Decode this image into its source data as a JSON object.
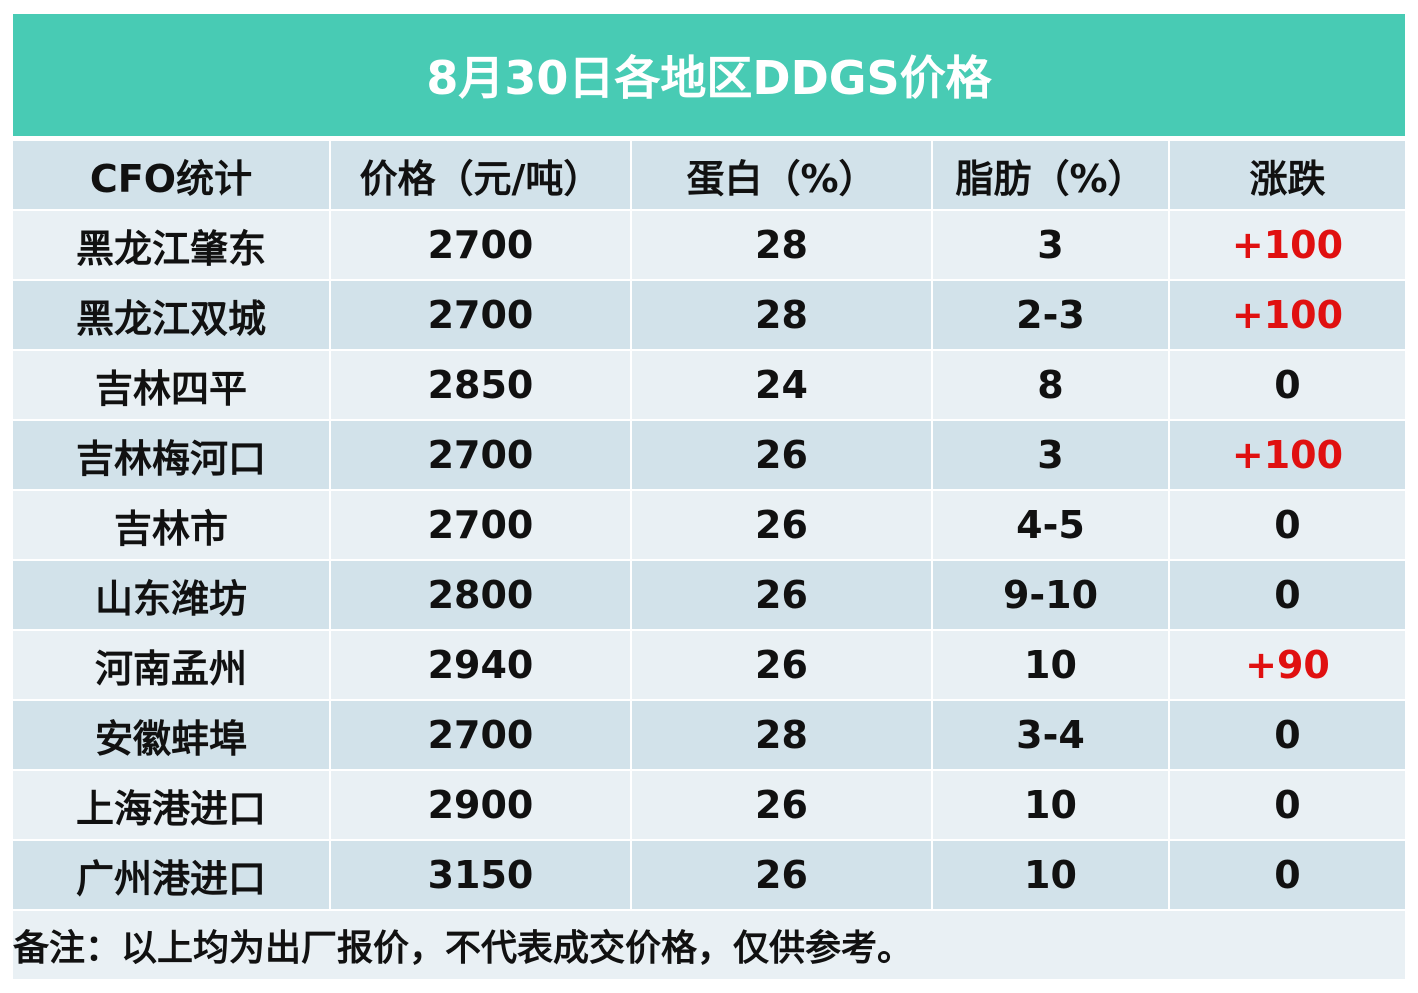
{
  "title": "8月30日各地区DDGS价格",
  "table": {
    "headers": [
      "CFO统计",
      "价格（元/吨）",
      "蛋白（%）",
      "脂肪（%）",
      "涨跌"
    ],
    "rows": [
      {
        "region": "黑龙江肇东",
        "price": "2700",
        "protein": "28",
        "fat": "3",
        "change": "+100"
      },
      {
        "region": "黑龙江双城",
        "price": "2700",
        "protein": "28",
        "fat": "2-3",
        "change": "+100"
      },
      {
        "region": "吉林四平",
        "price": "2850",
        "protein": "24",
        "fat": "8",
        "change": "0"
      },
      {
        "region": "吉林梅河口",
        "price": "2700",
        "protein": "26",
        "fat": "3",
        "change": "+100"
      },
      {
        "region": "吉林市",
        "price": "2700",
        "protein": "26",
        "fat": "4-5",
        "change": "0"
      },
      {
        "region": "山东潍坊",
        "price": "2800",
        "protein": "26",
        "fat": "9-10",
        "change": "0"
      },
      {
        "region": "河南孟州",
        "price": "2940",
        "protein": "26",
        "fat": "10",
        "change": "+90"
      },
      {
        "region": "安徽蚌埠",
        "price": "2700",
        "protein": "28",
        "fat": "3-4",
        "change": "0"
      },
      {
        "region": "上海港进口",
        "price": "2900",
        "protein": "26",
        "fat": "10",
        "change": "0"
      },
      {
        "region": "广州港进口",
        "price": "3150",
        "protein": "26",
        "fat": "10",
        "change": "0"
      }
    ]
  },
  "footnote": "备注：以上均为出厂报价，不代表成交价格，仅供参考。",
  "colors": {
    "title_bg": "#48cbb4",
    "row_dark": "#d2e2ea",
    "row_light": "#e9f0f4",
    "increase": "#e01010"
  }
}
